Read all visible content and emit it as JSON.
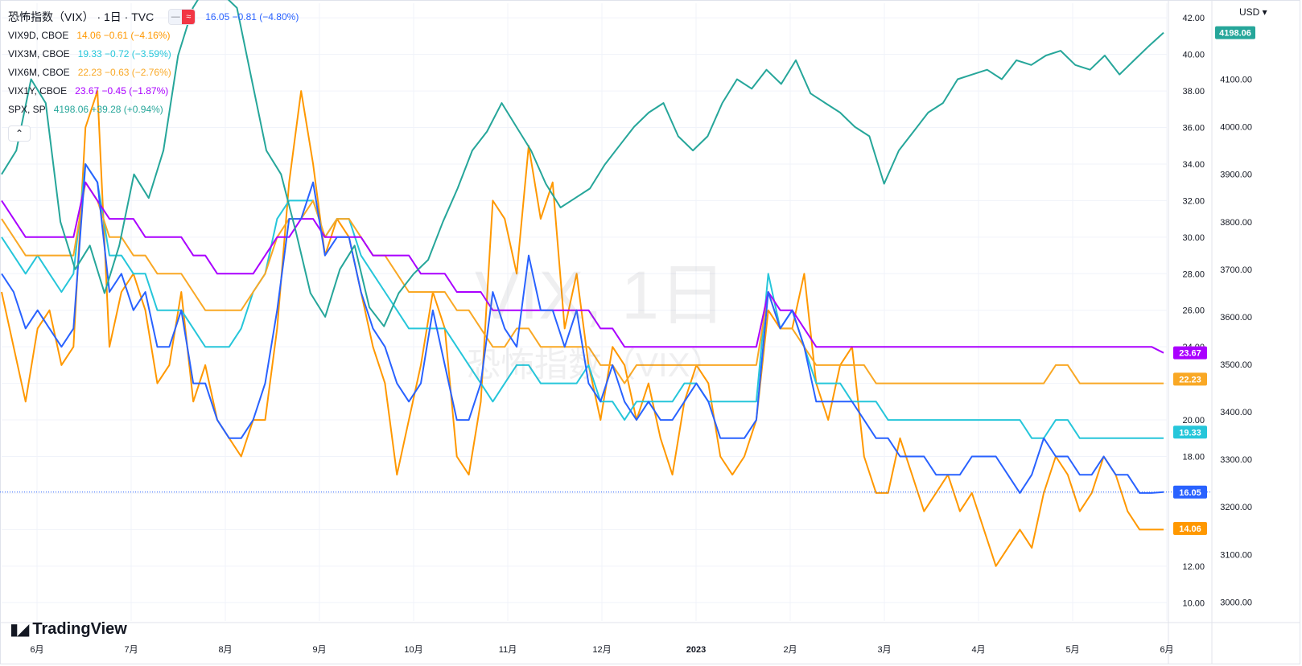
{
  "header": {
    "title": "恐怖指数（VIX） · 1日 · TVC",
    "main_values": "16.05  −0.81 (−4.80%)",
    "pill_left": "—",
    "pill_right": "≈",
    "collapse_icon": "chevron-up-icon",
    "currency": "USD ▾"
  },
  "legend": [
    {
      "symbol": "VIX9D, CBOE",
      "values": "14.06  −0.61 (−4.16%)",
      "color": "#ff9800"
    },
    {
      "symbol": "VIX3M, CBOE",
      "values": "19.33  −0.72 (−3.59%)",
      "color": "#26c6da"
    },
    {
      "symbol": "VIX6M, CBOE",
      "values": "22.23  −0.63 (−2.76%)",
      "color": "#f9a825"
    },
    {
      "symbol": "VIX1Y, CBOE",
      "values": "23.67  −0.45 (−1.87%)",
      "color": "#aa00ff"
    },
    {
      "symbol": "SPX, SP",
      "values": "4198.06  +39.28 (+0.94%)",
      "color": "#26a69a"
    }
  ],
  "watermark": {
    "line1": "VIX, 1日",
    "line2": "恐怖指数（VIX）"
  },
  "logo": {
    "text": "TradingView",
    "icon": "tradingview-logo-icon"
  },
  "chart_data": {
    "type": "line",
    "x_tick_labels": [
      "6月",
      "7月",
      "8月",
      "9月",
      "10月",
      "11月",
      "12月",
      "2023",
      "2月",
      "3月",
      "4月",
      "5月",
      "6月"
    ],
    "left_axis_ticks": [],
    "right_axis_vol": {
      "ticks": [
        10,
        12,
        14,
        16,
        18,
        20,
        22,
        24,
        26,
        28,
        30,
        32,
        34,
        36,
        38,
        40,
        42
      ],
      "labels": [
        "10.00",
        "12.00",
        "",
        "",
        "18.00",
        "20.00",
        "",
        "24.00",
        "26.00",
        "28.00",
        "30.00",
        "32.00",
        "34.00",
        "36.00",
        "38.00",
        "40.00",
        "42.00"
      ]
    },
    "right_axis_spx": {
      "ticks": [
        3000,
        3100,
        3200,
        3300,
        3400,
        3500,
        3600,
        3700,
        3800,
        3900,
        4000,
        4100
      ],
      "labels": [
        "3000.00",
        "3100.00",
        "3200.00",
        "3300.00",
        "3400.00",
        "3500.00",
        "3600.00",
        "3700.00",
        "3800.00",
        "3900.00",
        "4000.00",
        "4100.00"
      ]
    },
    "last_value_tags": [
      {
        "text": "4198.06",
        "axis": "spx",
        "value": 4198.06,
        "color": "#26a69a"
      },
      {
        "text": "23.67",
        "axis": "vol",
        "value": 23.67,
        "color": "#aa00ff"
      },
      {
        "text": "22.23",
        "axis": "vol",
        "value": 22.23,
        "color": "#f9a825"
      },
      {
        "text": "19.33",
        "axis": "vol",
        "value": 19.33,
        "color": "#26c6da"
      },
      {
        "text": "16.05",
        "axis": "vol",
        "value": 16.05,
        "color": "#2962ff"
      },
      {
        "text": "14.06",
        "axis": "vol",
        "value": 14.06,
        "color": "#ff9800"
      }
    ],
    "grid": true,
    "series": [
      {
        "name": "VIX9D, CBOE",
        "color": "#ff9800",
        "axis": "vol",
        "values": [
          27,
          24,
          21,
          25,
          26,
          23,
          24,
          36,
          38,
          24,
          27,
          28,
          26,
          22,
          23,
          27,
          21,
          23,
          20,
          19,
          18,
          20,
          20,
          25,
          33,
          38,
          34,
          29,
          31,
          30,
          27,
          24,
          22,
          17,
          20,
          23,
          27,
          25,
          18,
          17,
          21,
          32,
          31,
          28,
          35,
          31,
          33,
          25,
          28,
          23,
          20,
          24,
          23,
          20,
          22,
          19,
          17,
          21,
          23,
          22,
          18,
          17,
          18,
          20,
          26,
          25,
          25,
          28,
          22,
          20,
          23,
          24,
          18,
          16,
          16,
          19,
          17,
          15,
          16,
          17,
          15,
          16,
          14,
          12,
          13,
          14,
          13,
          16,
          18,
          17,
          15,
          16,
          18,
          17,
          15,
          14,
          14,
          14
        ]
      },
      {
        "name": "VIX3M, CBOE",
        "color": "#26c6da",
        "axis": "vol",
        "values": [
          30,
          29,
          28,
          29,
          28,
          27,
          28,
          34,
          33,
          29,
          29,
          28,
          28,
          26,
          26,
          26,
          25,
          24,
          24,
          24,
          25,
          27,
          28,
          31,
          32,
          32,
          32,
          30,
          31,
          31,
          29,
          28,
          27,
          26,
          25,
          25,
          25,
          25,
          24,
          23,
          22,
          21,
          22,
          23,
          23,
          22,
          22,
          22,
          22,
          23,
          21,
          21,
          20,
          21,
          21,
          21,
          21,
          22,
          22,
          21,
          21,
          21,
          21,
          21,
          28,
          25,
          26,
          24,
          22,
          22,
          22,
          21,
          21,
          21,
          20,
          20,
          20,
          20,
          20,
          20,
          20,
          20,
          20,
          20,
          20,
          20,
          19,
          19,
          20,
          20,
          19,
          19,
          19,
          19,
          19,
          19,
          19,
          19
        ]
      },
      {
        "name": "VIX6M, CBOE",
        "color": "#f9a825",
        "axis": "vol",
        "values": [
          31,
          30,
          29,
          29,
          29,
          29,
          29,
          33,
          32,
          30,
          30,
          29,
          29,
          28,
          28,
          28,
          27,
          26,
          26,
          26,
          26,
          27,
          28,
          30,
          31,
          31,
          32,
          30,
          31,
          31,
          30,
          29,
          29,
          28,
          27,
          27,
          27,
          27,
          26,
          26,
          25,
          24,
          24,
          25,
          25,
          24,
          24,
          24,
          24,
          24,
          23,
          23,
          22,
          23,
          23,
          23,
          23,
          23,
          23,
          23,
          23,
          23,
          23,
          23,
          27,
          25,
          25,
          24,
          23,
          23,
          23,
          23,
          23,
          22,
          22,
          22,
          22,
          22,
          22,
          22,
          22,
          22,
          22,
          22,
          22,
          22,
          22,
          22,
          23,
          23,
          22,
          22,
          22,
          22,
          22,
          22,
          22,
          22
        ]
      },
      {
        "name": "VIX1Y, CBOE",
        "color": "#aa00ff",
        "axis": "vol",
        "values": [
          32,
          31,
          30,
          30,
          30,
          30,
          30,
          33,
          32,
          31,
          31,
          31,
          30,
          30,
          30,
          30,
          29,
          29,
          28,
          28,
          28,
          28,
          29,
          30,
          30,
          31,
          31,
          30,
          30,
          30,
          30,
          29,
          29,
          29,
          29,
          28,
          28,
          28,
          27,
          27,
          27,
          26,
          26,
          26,
          26,
          26,
          26,
          26,
          26,
          26,
          25,
          25,
          24,
          24,
          24,
          24,
          24,
          24,
          24,
          24,
          24,
          24,
          24,
          24,
          27,
          26,
          26,
          25,
          24,
          24,
          24,
          24,
          24,
          24,
          24,
          24,
          24,
          24,
          24,
          24,
          24,
          24,
          24,
          24,
          24,
          24,
          24,
          24,
          24,
          24,
          24,
          24,
          24,
          24,
          24,
          24,
          24,
          23.67
        ]
      },
      {
        "name": "VIX, TVC",
        "color": "#2962ff",
        "axis": "vol",
        "values": [
          28,
          27,
          25,
          26,
          25,
          24,
          25,
          34,
          33,
          27,
          28,
          26,
          27,
          24,
          24,
          26,
          22,
          22,
          20,
          19,
          19,
          20,
          22,
          26,
          31,
          31,
          33,
          29,
          30,
          30,
          27,
          25,
          24,
          22,
          21,
          22,
          26,
          23,
          20,
          20,
          22,
          27,
          25,
          24,
          29,
          26,
          26,
          24,
          26,
          22,
          21,
          23,
          21,
          20,
          21,
          20,
          20,
          21,
          22,
          21,
          19,
          19,
          19,
          20,
          27,
          25,
          26,
          24,
          21,
          21,
          21,
          21,
          20,
          19,
          19,
          18,
          18,
          18,
          17,
          17,
          17,
          18,
          18,
          18,
          17,
          16,
          17,
          19,
          18,
          18,
          17,
          17,
          18,
          17,
          17,
          16,
          16,
          16.05
        ]
      },
      {
        "name": "SPX, SP",
        "color": "#26a69a",
        "axis": "spx",
        "values": [
          3900,
          3950,
          4100,
          4050,
          3800,
          3700,
          3750,
          3650,
          3750,
          3900,
          3850,
          3950,
          4150,
          4250,
          4300,
          4280,
          4250,
          4100,
          3950,
          3900,
          3780,
          3650,
          3600,
          3700,
          3750,
          3620,
          3580,
          3650,
          3690,
          3720,
          3800,
          3870,
          3950,
          3990,
          4050,
          4000,
          3950,
          3880,
          3830,
          3850,
          3870,
          3920,
          3960,
          4000,
          4030,
          4050,
          3980,
          3950,
          3980,
          4050,
          4100,
          4080,
          4120,
          4090,
          4140,
          4070,
          4050,
          4030,
          4000,
          3980,
          3880,
          3950,
          3990,
          4030,
          4050,
          4100,
          4110,
          4120,
          4100,
          4140,
          4130,
          4150,
          4160,
          4130,
          4120,
          4150,
          4110,
          4140,
          4170,
          4198.06
        ]
      }
    ]
  }
}
